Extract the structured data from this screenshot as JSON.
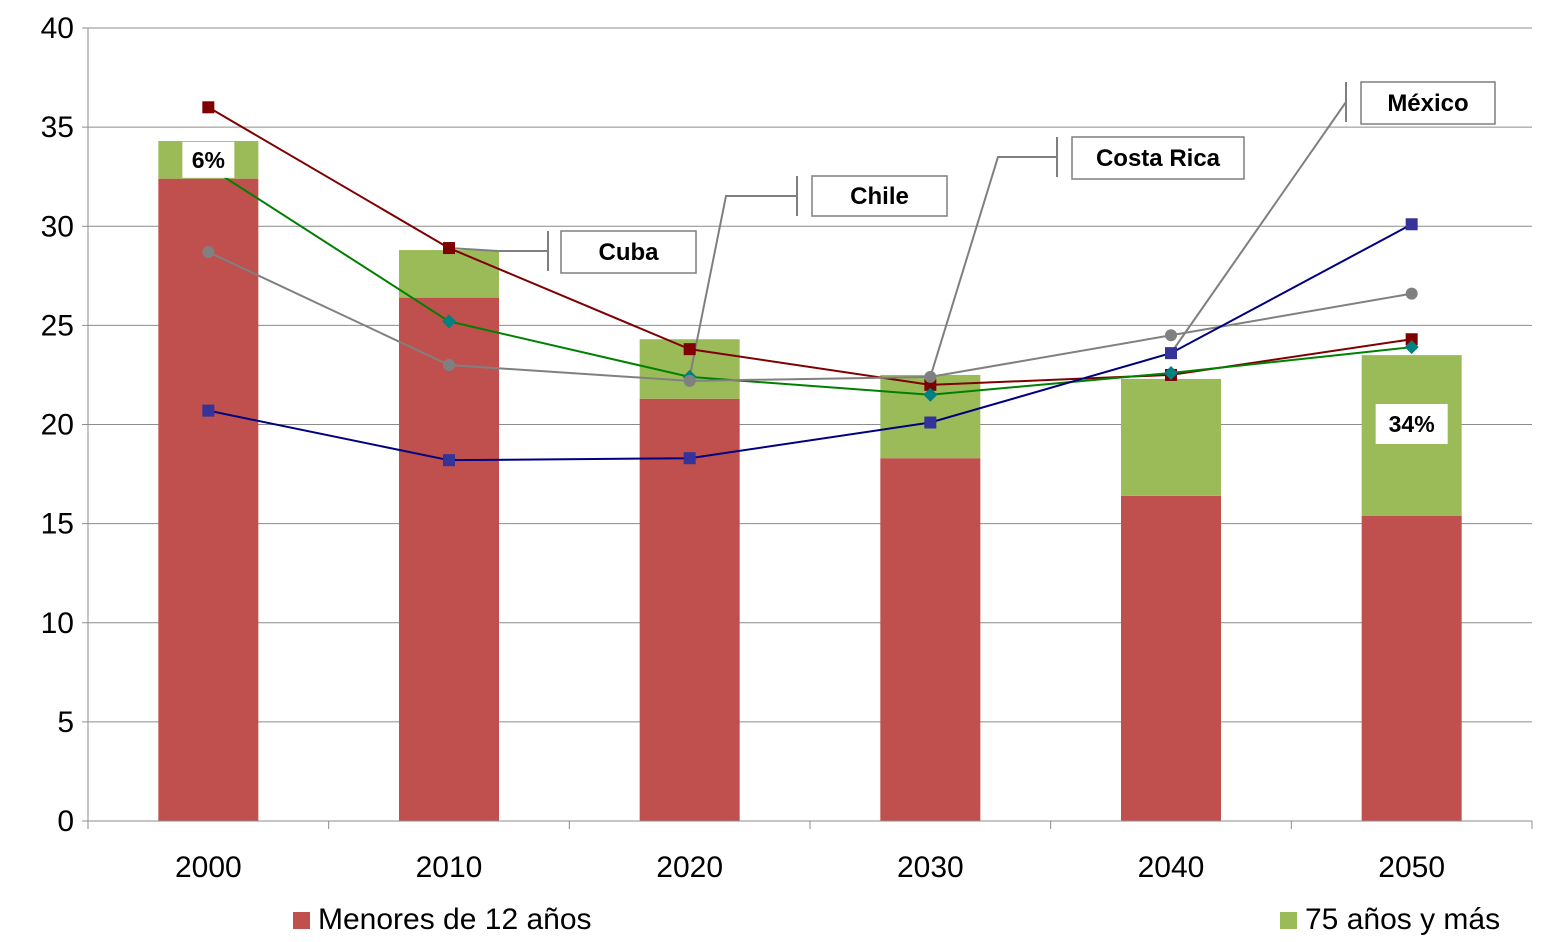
{
  "chart_data": {
    "type": "bar",
    "categories": [
      "2000",
      "2010",
      "2020",
      "2030",
      "2040",
      "2050"
    ],
    "ylim": [
      0,
      40
    ],
    "yticks": [
      0,
      5,
      10,
      15,
      20,
      25,
      30,
      35,
      40
    ],
    "grid": true,
    "bar_series": [
      {
        "name": "Menores de 12 años",
        "color": "#c0504d",
        "values": [
          32.4,
          26.4,
          21.3,
          18.3,
          16.4,
          15.4
        ]
      },
      {
        "name": "75 años y más",
        "color": "#9bbb59",
        "values": [
          1.9,
          2.4,
          3.0,
          4.2,
          5.9,
          8.1
        ]
      }
    ],
    "line_series": [
      {
        "name": "Cuba",
        "color": "#7f0000",
        "marker": "square",
        "values": [
          36.0,
          28.9,
          23.8,
          22.0,
          22.5,
          24.3
        ]
      },
      {
        "name": "Chile",
        "color": "#008000",
        "marker_color": "#008080",
        "marker": "diamond",
        "values": [
          33.0,
          25.2,
          22.4,
          21.5,
          22.6,
          23.9
        ]
      },
      {
        "name": "Costa Rica",
        "color": "#808080",
        "marker": "circle",
        "values": [
          28.7,
          23.0,
          22.2,
          22.4,
          24.5,
          26.6
        ]
      },
      {
        "name": "México",
        "color": "#000080",
        "marker_color": "#333399",
        "marker": "square",
        "values": [
          20.7,
          18.2,
          18.3,
          20.1,
          23.6,
          30.1
        ]
      }
    ],
    "annotations": [
      {
        "text": "6%",
        "category": "2000"
      },
      {
        "text": "34%",
        "category": "2050"
      }
    ],
    "legend": {
      "position": "bottom",
      "entries": [
        "Menores de 12 años",
        "75 años y más"
      ]
    }
  }
}
